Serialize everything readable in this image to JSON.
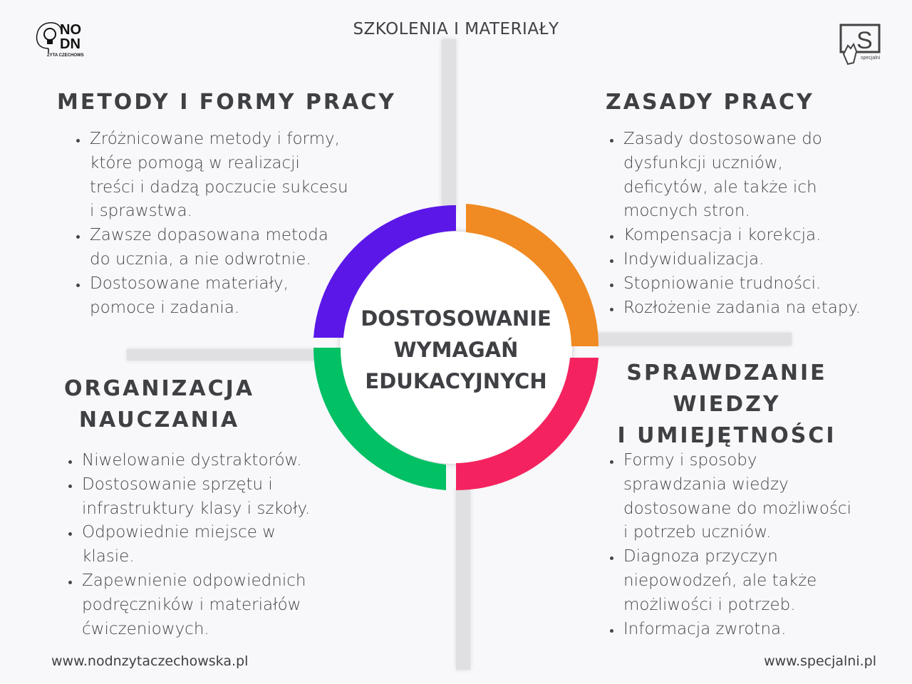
{
  "header": {
    "title": "SZKOLENIA I MATERIAŁY"
  },
  "logos": {
    "left": "NO DN ZYTA CZECHOWSKA",
    "right": "specjalni"
  },
  "center": {
    "title": "DOSTOSOWANIE\nWYMAGAŃ\nEDUKACYJNYCH"
  },
  "ring_colors": {
    "top_left": "#5b17e8",
    "top_right": "#f08a22",
    "bottom_right": "#f4235f",
    "bottom_left": "#02c064"
  },
  "sections": {
    "methods": {
      "title": "METODY I FORMY PRACY",
      "items": [
        "Zróżnicowane metody i formy,\nktóre pomogą w realizacji\ntreści i dadzą poczucie sukcesu\ni sprawstwa.",
        "Zawsze dopasowana metoda\ndo ucznia, a nie odwrotnie.",
        "Dostosowane materiały,\npomoce i zadania."
      ]
    },
    "principles": {
      "title": "ZASADY PRACY",
      "items": [
        "Zasady dostosowane do\ndysfunkcji uczniów,\ndeficytów, ale także ich\nmocnych stron.",
        "Kompensacja i korekcja.",
        "Indywidualizacja.",
        "Stopniowanie trudności.",
        "Rozłożenie zadania na etapy."
      ]
    },
    "organization": {
      "title": "ORGANIZACJA\nNAUCZANIA",
      "items": [
        "Niwelowanie dystraktorów.",
        "Dostosowanie sprzętu i\ninfrastruktury klasy i szkoły.",
        "Odpowiednie miejsce w\nklasie.",
        "Zapewnienie odpowiednich\npodręczników i materiałów\nćwiczeniowych."
      ]
    },
    "assessment": {
      "title": "SPRAWDZANIE\nWIEDZY\nI UMIEJĘTNOŚCI",
      "items": [
        "Formy i sposoby\nsprawdzania wiedzy\ndostosowane do możliwości\ni potrzeb uczniów.",
        "Diagnoza przyczyn\nniepowodzeń, ale także\nmożliwości i potrzeb.",
        "Informacja zwrotna."
      ]
    }
  },
  "footer": {
    "left_url": "www.nodnzytaczechowska.pl",
    "right_url": "www.specjalni.pl"
  }
}
